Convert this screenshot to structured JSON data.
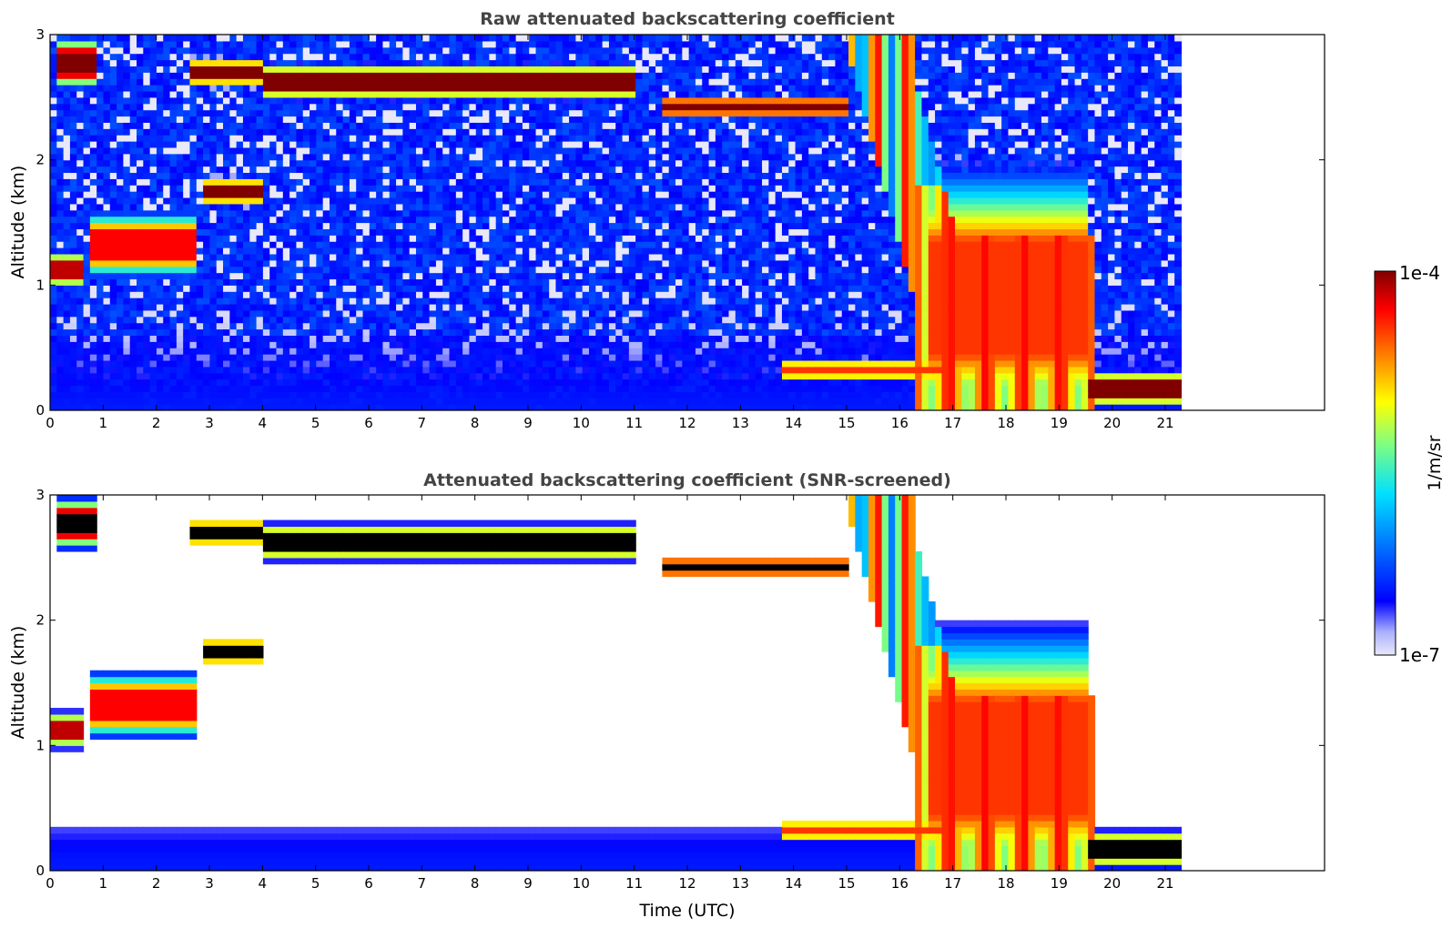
{
  "chart_data": [
    {
      "type": "heatmap",
      "title": "Raw attenuated backscattering coefficient",
      "ylabel": "Altitude (km)",
      "xlabel": "",
      "xlim": [
        0,
        24
      ],
      "ylim": [
        0,
        3
      ],
      "xticks": [
        "0",
        "1",
        "2",
        "3",
        "4",
        "5",
        "6",
        "7",
        "8",
        "9",
        "10",
        "11",
        "12",
        "13",
        "14",
        "15",
        "16",
        "17",
        "18",
        "19",
        "20",
        "21"
      ],
      "yticks": [
        "0",
        "1",
        "2",
        "3"
      ],
      "data_end_time": 21.3,
      "features": [
        {
          "t0": 0.1,
          "t1": 0.9,
          "z0": 2.6,
          "z1": 2.95,
          "level": 1.0
        },
        {
          "t0": 2.6,
          "t1": 4.0,
          "z0": 2.6,
          "z1": 2.8,
          "level": 1.0
        },
        {
          "t0": 4.0,
          "t1": 11.0,
          "z0": 2.5,
          "z1": 2.75,
          "level": 1.0
        },
        {
          "t0": 11.5,
          "t1": 15.0,
          "z0": 2.35,
          "z1": 2.5,
          "level": 1.0
        },
        {
          "t0": 2.9,
          "t1": 4.0,
          "z0": 1.65,
          "z1": 1.85,
          "level": 1.0
        },
        {
          "t0": 0.8,
          "t1": 2.7,
          "z0": 1.1,
          "z1": 1.55,
          "level": 0.9
        },
        {
          "t0": 0.0,
          "t1": 0.6,
          "z0": 1.0,
          "z1": 1.25,
          "level": 0.95
        },
        {
          "t0": 13.8,
          "t1": 16.8,
          "z0": 0.25,
          "z1": 0.4,
          "level": 0.85
        },
        {
          "t0": 16.5,
          "t1": 19.6,
          "z0": 0.0,
          "z1": 1.8,
          "level": 0.85
        },
        {
          "t0": 19.6,
          "t1": 21.3,
          "z0": 0.05,
          "z1": 0.3,
          "level": 1.0
        }
      ]
    },
    {
      "type": "heatmap",
      "title": "Attenuated backscattering coefficient (SNR-screened)",
      "ylabel": "Altitude (km)",
      "xlabel": "Time (UTC)",
      "xlim": [
        0,
        24
      ],
      "ylim": [
        0,
        3
      ],
      "xticks": [
        "0",
        "1",
        "2",
        "3",
        "4",
        "5",
        "6",
        "7",
        "8",
        "9",
        "10",
        "11",
        "12",
        "13",
        "14",
        "15",
        "16",
        "17",
        "18",
        "19",
        "20",
        "21"
      ],
      "yticks": [
        "0",
        "1",
        "2",
        "3"
      ],
      "data_end_time": 21.3
    }
  ],
  "colorbar": {
    "label": "1/m/sr",
    "max_label": "1e-4",
    "min_label": "1e-7",
    "scale": "log",
    "range": [
      1e-07,
      0.0001
    ],
    "colors": [
      "#e8e8f8",
      "#aab0ff",
      "#0000ff",
      "#0080ff",
      "#00e0ff",
      "#80ff80",
      "#ffff00",
      "#ff8000",
      "#ff0000",
      "#800000"
    ]
  }
}
